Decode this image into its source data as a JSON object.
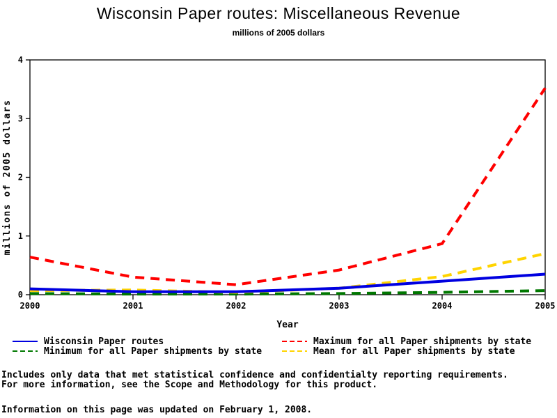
{
  "page": {
    "title": "Wisconsin Paper routes: Miscellaneous Revenue",
    "subtitle": "millions of 2005 dollars"
  },
  "chart_data": {
    "type": "line",
    "title": "Wisconsin Paper routes: Miscellaneous Revenue",
    "subtitle": "millions of 2005 dollars",
    "xlabel": "Year",
    "ylabel": "millions of 2005 dollars",
    "x": [
      2000,
      2001,
      2002,
      2003,
      2004,
      2005
    ],
    "x_tick_labels": [
      "2000",
      "2001",
      "2002",
      "2003",
      "2004",
      "2005"
    ],
    "y_ticks": [
      0,
      1,
      2,
      3,
      4
    ],
    "ylim": [
      0,
      4
    ],
    "grid": false,
    "legend_position": "bottom",
    "frame_color": "#000000",
    "series": [
      {
        "name": "Wisconsin Paper routes",
        "color": "#0000e0",
        "style": "solid",
        "values": [
          0.1,
          0.05,
          0.05,
          0.11,
          0.23,
          0.35
        ]
      },
      {
        "name": "Maximum for all Paper shipments by state",
        "color": "#ff0000",
        "style": "dashed",
        "values": [
          0.64,
          0.3,
          0.17,
          0.42,
          0.87,
          3.52
        ]
      },
      {
        "name": "Minimum for all Paper shipments by state",
        "color": "#007800",
        "style": "dashed",
        "values": [
          0.02,
          0.01,
          0.01,
          0.02,
          0.04,
          0.07
        ]
      },
      {
        "name": "Mean for all Paper shipments by state",
        "color": "#ffd400",
        "style": "dashed",
        "values": [
          0.07,
          0.08,
          0.04,
          0.11,
          0.31,
          0.7
        ]
      }
    ]
  },
  "footer": {
    "note_line1": "Includes only data that met statistical confidence and confidentialty reporting requirements.",
    "note_line2": "For more information, see the Scope and Methodology for this product.",
    "updated": "Information on this page was updated on February 1, 2008."
  }
}
